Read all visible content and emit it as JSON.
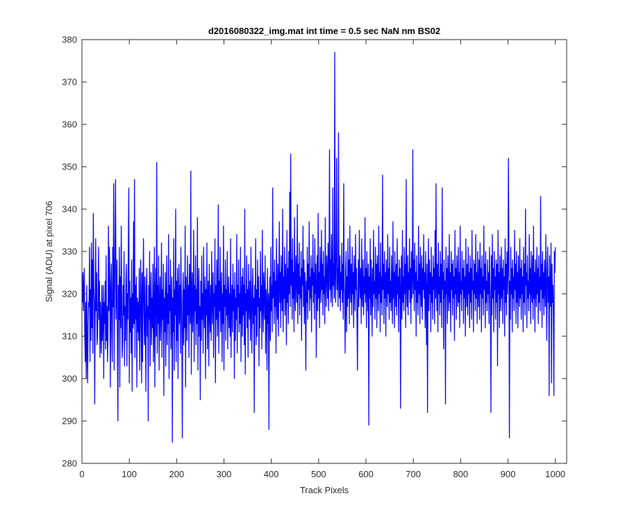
{
  "chart_data": {
    "type": "line",
    "title": "d2016080322_img.mat int time = 0.5 sec  NaN nm BS02",
    "xlabel": "Track Pixels",
    "ylabel": "Signal (ADU) at pixel 706",
    "xlim": [
      0,
      1024
    ],
    "ylim": [
      280,
      380
    ],
    "xticks": [
      "0",
      "100",
      "200",
      "300",
      "400",
      "500",
      "600",
      "700",
      "800",
      "900",
      "1000"
    ],
    "yticks": [
      "280",
      "290",
      "300",
      "310",
      "320",
      "330",
      "340",
      "350",
      "360",
      "370",
      "380"
    ],
    "grid": false,
    "line_color": "#0000ff",
    "series": [
      {
        "name": "",
        "x_start": 1,
        "x_step": 1,
        "values": [
          318,
          325,
          316,
          321,
          326,
          310,
          304,
          318,
          300,
          322,
          308,
          299,
          313,
          318,
          317,
          331,
          304,
          321,
          309,
          332,
          312,
          328,
          306,
          339,
          322,
          318,
          294,
          316,
          333,
          316,
          325,
          308,
          310,
          319,
          331,
          314,
          323,
          305,
          318,
          311,
          306,
          322,
          309,
          314,
          322,
          300,
          318,
          313,
          323,
          307,
          329,
          309,
          317,
          304,
          310,
          336,
          316,
          331,
          322,
          298,
          321,
          327,
          311,
          304,
          331,
          317,
          346,
          302,
          320,
          333,
          347,
          314,
          321,
          328,
          307,
          290,
          322,
          314,
          331,
          298,
          324,
          312,
          336,
          319,
          305,
          308,
          322,
          315,
          330,
          303,
          317,
          309,
          323,
          327,
          303,
          320,
          314,
          330,
          345,
          299,
          323,
          311,
          319,
          306,
          328,
          297,
          320,
          312,
          337,
          313,
          347,
          305,
          322,
          314,
          324,
          298,
          319,
          311,
          318,
          309,
          326,
          302,
          312,
          328,
          318,
          299,
          325,
          304,
          321,
          333,
          316,
          308,
          324,
          313,
          297,
          321,
          326,
          310,
          317,
          290,
          322,
          314,
          330,
          303,
          318,
          325,
          308,
          319,
          312,
          327,
          304,
          315,
          331,
          298,
          320,
          326,
          310,
          351,
          306,
          322,
          313,
          329,
          302,
          318,
          324,
          309,
          316,
          332,
          305,
          321,
          314,
          327,
          296,
          319,
          311,
          325,
          303,
          317,
          329,
          308,
          320,
          313,
          334,
          300,
          322,
          316,
          328,
          307,
          318,
          324,
          285,
          319,
          311,
          333,
          302,
          321,
          315,
          340,
          304,
          323,
          309,
          326,
          300,
          318,
          327,
          313,
          322,
          306,
          331,
          320,
          310,
          286,
          319,
          325,
          308,
          321,
          312,
          336,
          298,
          324,
          318,
          309,
          329,
          315,
          322,
          305,
          327,
          319,
          313,
          349,
          301,
          320,
          325,
          311,
          317,
          335,
          304,
          322,
          316,
          329,
          308,
          321,
          313,
          338,
          302,
          319,
          326,
          310,
          317,
          295,
          323,
          309,
          329,
          314,
          320,
          306,
          331,
          317,
          312,
          324,
          300,
          321,
          315,
          332,
          307,
          319,
          323,
          303,
          327,
          316,
          311,
          322,
          309,
          330,
          318,
          313,
          325,
          305,
          320,
          317,
          333,
          299,
          322,
          314,
          328,
          310,
          319,
          341,
          306,
          323,
          316,
          331,
          311,
          318,
          325,
          304,
          320,
          313,
          336,
          302,
          322,
          317,
          328,
          309,
          321,
          315,
          330,
          307,
          319,
          324,
          312,
          320,
          310,
          333,
          305,
          318,
          322,
          311,
          327,
          316,
          321,
          300,
          325,
          309,
          319,
          314,
          334,
          306,
          322,
          317,
          328,
          311,
          320,
          313,
          331,
          304,
          319,
          324,
          310,
          326,
          315,
          322,
          308,
          340,
          301,
          320,
          316,
          329,
          312,
          321,
          305,
          327,
          318,
          314,
          323,
          309,
          331,
          317,
          306,
          320,
          326,
          313,
          319,
          292,
          322,
          315,
          333,
          308,
          321,
          310,
          328,
          317,
          324,
          303,
          319,
          312,
          330,
          316,
          322,
          307,
          335,
          318,
          311,
          325,
          320,
          314,
          329,
          306,
          321,
          317,
          302,
          326,
          313,
          320,
          288,
          318,
          324,
          309,
          331,
          316,
          322,
          311,
          345,
          319,
          325,
          313,
          328,
          317,
          323,
          306,
          333,
          320,
          314,
          327,
          310,
          322,
          337,
          318,
          325,
          312,
          329,
          321,
          316,
          340,
          311,
          324,
          319,
          331,
          315,
          327,
          322,
          308,
          335,
          318,
          326,
          313,
          330,
          320,
          344,
          317,
          353,
          322,
          328,
          314,
          333,
          319,
          325,
          311,
          338,
          321,
          316,
          329,
          324,
          318,
          341,
          313,
          327,
          320,
          332,
          315,
          324,
          319,
          330,
          309,
          326,
          322,
          336,
          317,
          328,
          313,
          325,
          320,
          302,
          323,
          318,
          331,
          314,
          327,
          321,
          337,
          316,
          324,
          319,
          329,
          311,
          326,
          322,
          334,
          318,
          325,
          314,
          333,
          320,
          327,
          305,
          322,
          329,
          316,
          339,
          319,
          325,
          312,
          331,
          323,
          318,
          335,
          321,
          327,
          315,
          330,
          320,
          324,
          313,
          338,
          322,
          317,
          329,
          325,
          319,
          332,
          316,
          326,
          354,
          321,
          328,
          318,
          334,
          323,
          317,
          345,
          322,
          327,
          319,
          377,
          324,
          318,
          330,
          352,
          321,
          326,
          317,
          358,
          323,
          319,
          329,
          316,
          325,
          321,
          332,
          318,
          327,
          314,
          346,
          322,
          320,
          306,
          325,
          330,
          311,
          324,
          317,
          333,
          319,
          328,
          313,
          336,
          322,
          318,
          327,
          315,
          331,
          320,
          325,
          312,
          329,
          323,
          316,
          334,
          321,
          326,
          314,
          302,
          320,
          328,
          317,
          335,
          323,
          319,
          326,
          313,
          333,
          321,
          317,
          328,
          315,
          324,
          320,
          338,
          318,
          326,
          312,
          330,
          322,
          316,
          327,
          289,
          324,
          319,
          333,
          315,
          328,
          321,
          310,
          326,
          317,
          335,
          320,
          323,
          314,
          331,
          319,
          327,
          312,
          329,
          322,
          316,
          336,
          320,
          325,
          311,
          332,
          318,
          324,
          315,
          348,
          321,
          327,
          313,
          330,
          319,
          325,
          310,
          328,
          322,
          317,
          334,
          320,
          326,
          314,
          331,
          318,
          323,
          316,
          329,
          321,
          313,
          337,
          319,
          325,
          312,
          330,
          322,
          317,
          327,
          315,
          333,
          320,
          324,
          311,
          328,
          319,
          326,
          293,
          321,
          329,
          314,
          335,
          318,
          324,
          316,
          331,
          320,
          327,
          312,
          347,
          322,
          317,
          329,
          315,
          325,
          321,
          333,
          318,
          326,
          313,
          330,
          319,
          324,
          354,
          320,
          328,
          316,
          332,
          321,
          325,
          310,
          329,
          318,
          323,
          315,
          336,
          320,
          327,
          313,
          331,
          322,
          317,
          329,
          314,
          326,
          321,
          334,
          319,
          325,
          312,
          330,
          320,
          308,
          327,
          292,
          322,
          333,
          316,
          328,
          320,
          325,
          311,
          331,
          318,
          324,
          314,
          329,
          321,
          326,
          313,
          335,
          319,
          346,
          322,
          316,
          327,
          311,
          332,
          320,
          324,
          315,
          330,
          318,
          327,
          312,
          345,
          321,
          325,
          307,
          328,
          319,
          323,
          294,
          331,
          320,
          326,
          313,
          329,
          322,
          316,
          334,
          318,
          325,
          311,
          330,
          321,
          327,
          315,
          328,
          319,
          324,
          309,
          335,
          320,
          326,
          314,
          329,
          322,
          317,
          331,
          318,
          325,
          312,
          336,
          320,
          323,
          316,
          330,
          321,
          326,
          313,
          328,
          319,
          324,
          310,
          333,
          322,
          317,
          327,
          315,
          331,
          320,
          325,
          312,
          329,
          318,
          326,
          314,
          335,
          321,
          323,
          311,
          328,
          320,
          327,
          316,
          334,
          319,
          325,
          313,
          330,
          322,
          317,
          328,
          314,
          332,
          320,
          326,
          311,
          329,
          319,
          324,
          315,
          336,
          321,
          327,
          312,
          330,
          318,
          323,
          316,
          328,
          320,
          325,
          313,
          331,
          322,
          317,
          292,
          329,
          315,
          334,
          319,
          326,
          311,
          330,
          321,
          324,
          314,
          328,
          318,
          327,
          303,
          335,
          320,
          325,
          312,
          329,
          322,
          316,
          331,
          319,
          326,
          313,
          328,
          321,
          324,
          310,
          333,
          318,
          327,
          315,
          330,
          320,
          325,
          352,
          329,
          286,
          323,
          314,
          331,
          320,
          326,
          311,
          328,
          319,
          324,
          316,
          335,
          321,
          327,
          313,
          330,
          318,
          325,
          312,
          329,
          322,
          317,
          333,
          319,
          326,
          314,
          328,
          320,
          324,
          311,
          331,
          318,
          327,
          315,
          340,
          322,
          325,
          312,
          329,
          319,
          323,
          316,
          334,
          320,
          326,
          313,
          330,
          321,
          318,
          329,
          314,
          336,
          319,
          325,
          311,
          328,
          322,
          317,
          331,
          320,
          326,
          313,
          329,
          318,
          324,
          316,
          343,
          321,
          327,
          312,
          330,
          319,
          325,
          315,
          328,
          322,
          317,
          334,
          320,
          309,
          326,
          331,
          318,
          324,
          296,
          329,
          321,
          317,
          332,
          299,
          327,
          318,
          322,
          315,
          296,
          330,
          325,
          331
        ]
      }
    ]
  }
}
